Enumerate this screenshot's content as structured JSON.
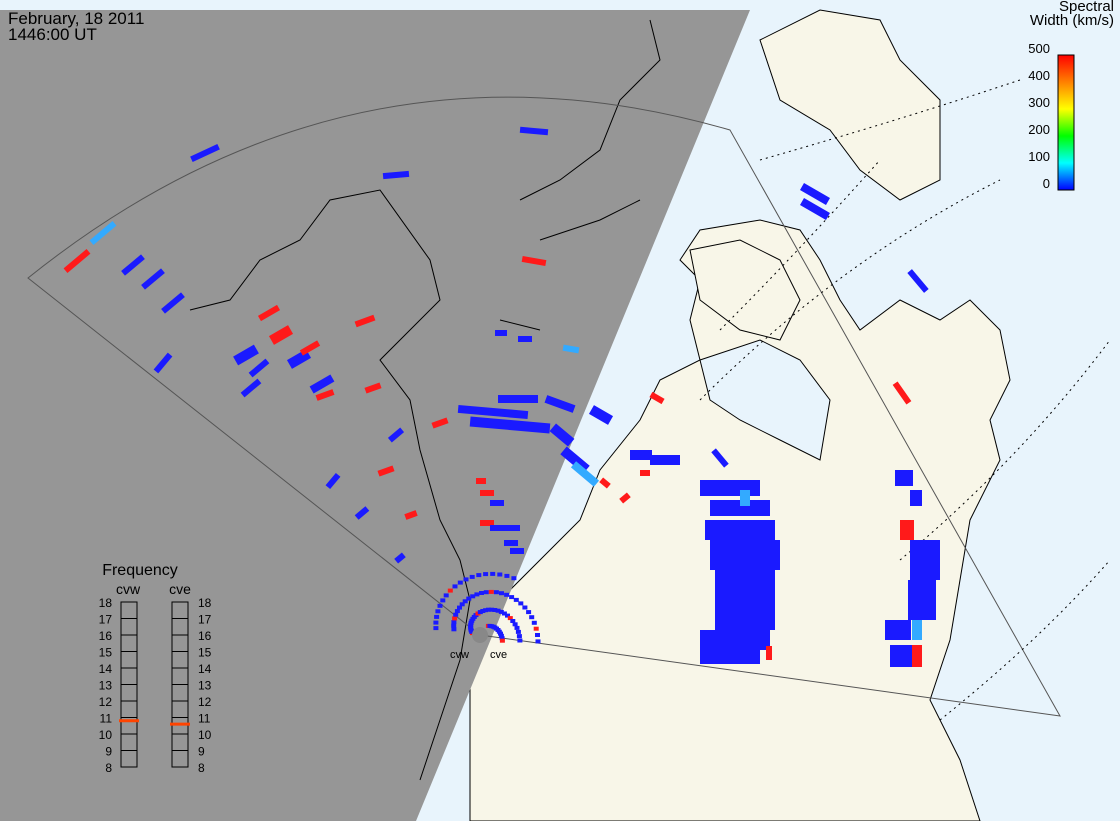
{
  "header": {
    "date": "February, 18 2011",
    "time": "1446:00 UT"
  },
  "colorbar": {
    "title_line1": "Spectral",
    "title_line2": "Width (km/s)",
    "ticks": [
      "500",
      "400",
      "300",
      "200",
      "100",
      "0"
    ],
    "scale_colors": [
      "#ff0000",
      "#ff8000",
      "#ffff00",
      "#00ff00",
      "#00ffff",
      "#0000ff"
    ]
  },
  "radars": {
    "west": "cvw",
    "east": "cve"
  },
  "frequency_panel": {
    "title": "Frequency",
    "col_west": "cvw",
    "col_east": "cve",
    "levels": [
      "18",
      "17",
      "16",
      "15",
      "14",
      "13",
      "12",
      "11",
      "10",
      "9",
      "8"
    ],
    "west_value_mhz": 10.8,
    "east_value_mhz": 10.6,
    "marker_color": "#ff4400"
  },
  "colors": {
    "night_shade": "#969696",
    "land_day": "#f8f6e8",
    "ocean_day": "#e8f4fc",
    "echo_low": "#1a1aff",
    "echo_high": "#ff1a1a",
    "echo_mid": "#33aaff"
  }
}
